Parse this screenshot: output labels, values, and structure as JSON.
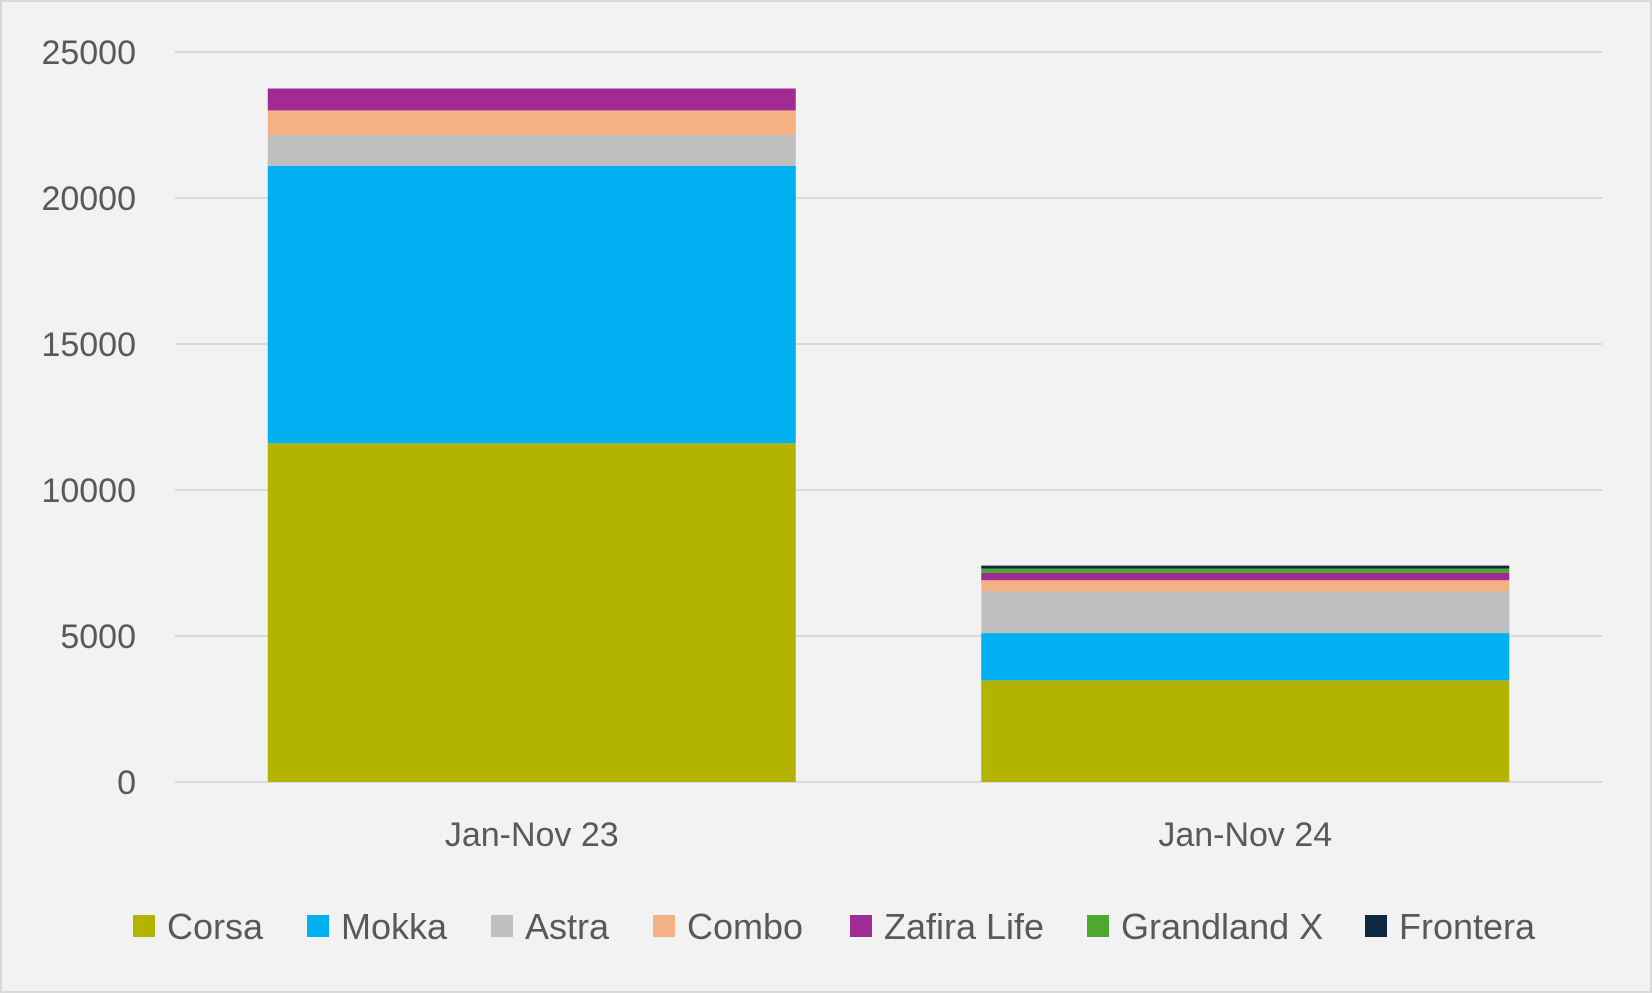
{
  "chart_data": {
    "type": "bar",
    "stacked": true,
    "categories": [
      "Jan-Nov 23",
      "Jan-Nov 24"
    ],
    "series": [
      {
        "name": "Corsa",
        "color": "#b3b400",
        "values": [
          11600,
          3480
        ]
      },
      {
        "name": "Mokka",
        "color": "#00b0f0",
        "values": [
          9500,
          1620
        ]
      },
      {
        "name": "Astra",
        "color": "#bfbfbf",
        "values": [
          1050,
          1430
        ]
      },
      {
        "name": "Combo",
        "color": "#f4b183",
        "values": [
          850,
          380
        ]
      },
      {
        "name": "Zafira Life",
        "color": "#a02b93",
        "values": [
          750,
          250
        ]
      },
      {
        "name": "Grandland X",
        "color": "#4ea72e",
        "values": [
          0,
          150
        ]
      },
      {
        "name": "Frontera",
        "color": "#0e2841",
        "values": [
          0,
          100
        ]
      }
    ],
    "ylim": [
      0,
      25000
    ],
    "yticks": [
      "0",
      "5000",
      "10000",
      "15000",
      "20000",
      "25000"
    ],
    "grid": true,
    "legend_position": "bottom",
    "title": "",
    "xlabel": "",
    "ylabel": ""
  }
}
